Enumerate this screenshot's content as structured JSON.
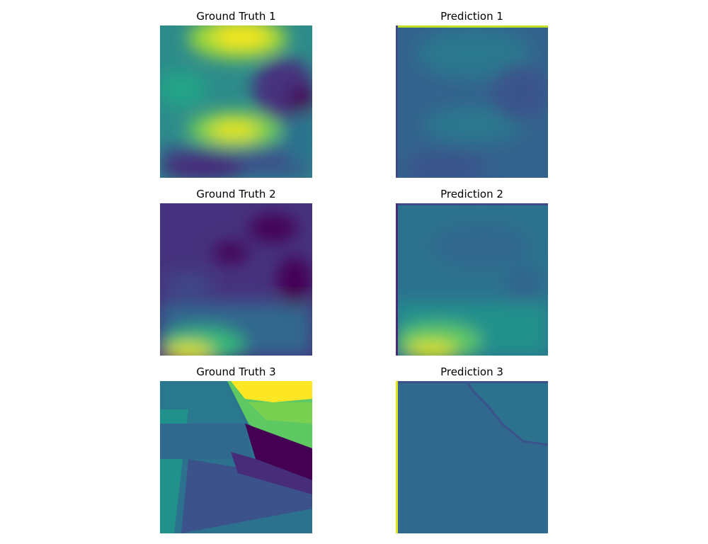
{
  "figure": {
    "colormap": "viridis",
    "panels": [
      {
        "title": "Ground Truth 1"
      },
      {
        "title": "Prediction 1"
      },
      {
        "title": "Ground Truth 2"
      },
      {
        "title": "Prediction 2"
      },
      {
        "title": "Ground Truth 3"
      },
      {
        "title": "Prediction 3"
      }
    ]
  }
}
